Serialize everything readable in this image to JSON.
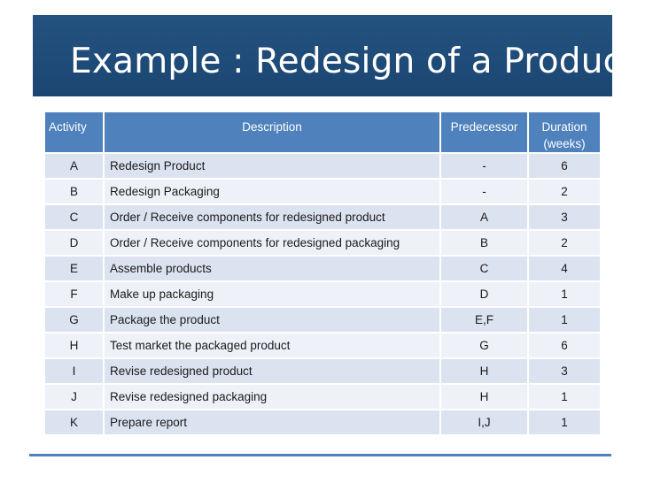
{
  "title": "Example : Redesign of a Product",
  "table": {
    "headers": {
      "activity": "Activity",
      "description": "Description",
      "predecessor": "Predecessor",
      "duration_line1": "Duration",
      "duration_line2": "(weeks)"
    },
    "rows": [
      {
        "activity": "A",
        "description": "Redesign Product",
        "predecessor": "-",
        "duration": "6"
      },
      {
        "activity": "B",
        "description": "Redesign Packaging",
        "predecessor": "-",
        "duration": "2"
      },
      {
        "activity": "C",
        "description": "Order / Receive components for redesigned product",
        "predecessor": "A",
        "duration": "3"
      },
      {
        "activity": "D",
        "description": "Order / Receive components for redesigned packaging",
        "predecessor": "B",
        "duration": "2"
      },
      {
        "activity": "E",
        "description": "Assemble products",
        "predecessor": "C",
        "duration": "4"
      },
      {
        "activity": "F",
        "description": "Make up packaging",
        "predecessor": "D",
        "duration": "1"
      },
      {
        "activity": "G",
        "description": "Package the product",
        "predecessor": "E,F",
        "duration": "1"
      },
      {
        "activity": "H",
        "description": "Test market the packaged product",
        "predecessor": "G",
        "duration": "6"
      },
      {
        "activity": "I",
        "description": "Revise redesigned product",
        "predecessor": "H",
        "duration": "3"
      },
      {
        "activity": "J",
        "description": "Revise redesigned packaging",
        "predecessor": "H",
        "duration": "1"
      },
      {
        "activity": "K",
        "description": "Prepare report",
        "predecessor": "I,J",
        "duration": "1"
      }
    ]
  },
  "colors": {
    "title_band": "#1f4e79",
    "header": "#4f81bd",
    "row_odd": "#dbe3f0",
    "row_even": "#eef2f8",
    "rule": "#4f81bd"
  }
}
